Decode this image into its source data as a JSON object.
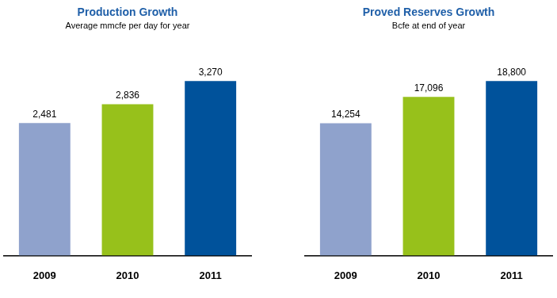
{
  "chart_data": [
    {
      "type": "bar",
      "title": "Production Growth",
      "subtitle": "Average mmcfe per day for year",
      "categories": [
        "2009",
        "2010",
        "2011"
      ],
      "values": [
        2481,
        2836,
        3270
      ],
      "value_labels": [
        "2,481",
        "2,836",
        "3,270"
      ],
      "colors": [
        "#8fa2cc",
        "#97c11b",
        "#00529b"
      ],
      "ylim": [
        0,
        3600
      ],
      "grid": false,
      "data_labels": true,
      "tick_labels": "x"
    },
    {
      "type": "bar",
      "title": "Proved Reserves Growth",
      "subtitle": "Bcfe at end of year",
      "categories": [
        "2009",
        "2010",
        "2011"
      ],
      "values": [
        14254,
        17096,
        18800
      ],
      "value_labels": [
        "14,254",
        "17,096",
        "18,800"
      ],
      "colors": [
        "#8fa2cc",
        "#97c11b",
        "#00529b"
      ],
      "ylim": [
        0,
        20700
      ],
      "grid": false,
      "data_labels": true,
      "tick_labels": "x"
    }
  ]
}
